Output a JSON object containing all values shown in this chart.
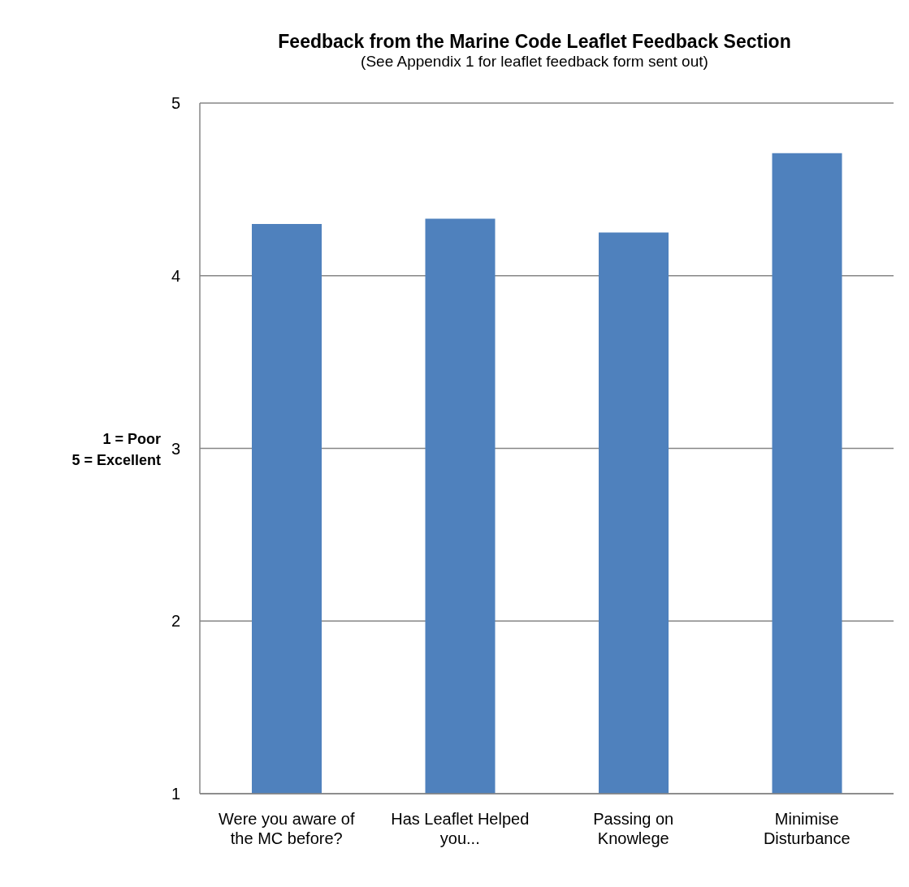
{
  "chart_data": {
    "type": "bar",
    "title": "Feedback from the Marine Code Leaflet Feedback Section",
    "subtitle": "(See Appendix 1 for leaflet feedback form sent out)",
    "ylabel": "1 = Poor\n5 = Excellent",
    "categories": [
      "Were you aware of the MC before?",
      "Has Leaflet Helped you...",
      "Passing on Knowlege",
      "Minimise Disturbance"
    ],
    "values": [
      4.3,
      4.33,
      4.25,
      4.71
    ],
    "color": "#4f81bd",
    "ylim": [
      1,
      5
    ],
    "yticks": [
      1,
      2,
      3,
      4,
      5
    ],
    "grid": "y"
  }
}
